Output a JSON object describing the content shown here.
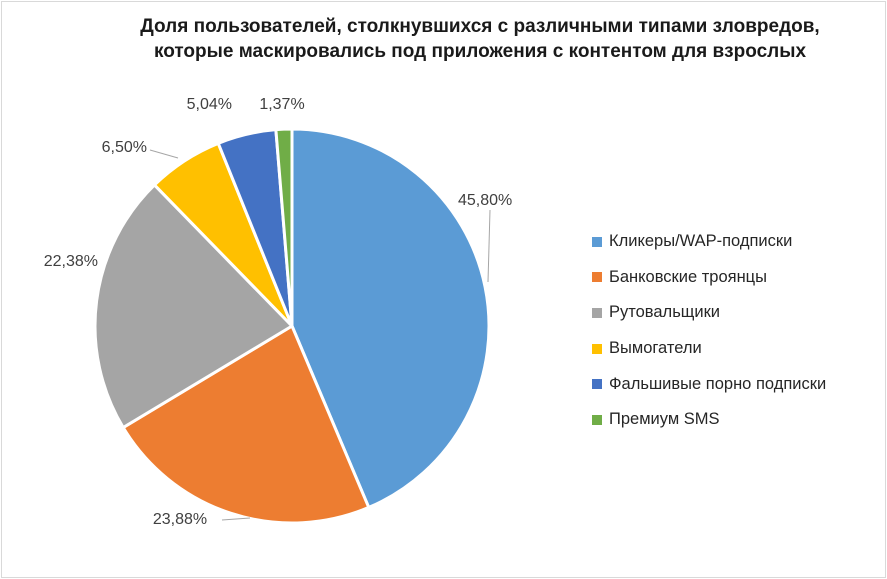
{
  "chart_data": {
    "type": "pie",
    "title_lines": [
      "Доля пользователей, столкнувшихся с различными типами зловредов,",
      "которые маскировались под приложения с контентом для взрослых"
    ],
    "legend_position": "right",
    "slices": [
      {
        "name": "Кликеры/WAP-подписки",
        "value": 45.8,
        "label": "45,80%",
        "color": "#5b9bd5"
      },
      {
        "name": "Банковские троянцы",
        "value": 23.88,
        "label": "23,88%",
        "color": "#ed7d31"
      },
      {
        "name": "Рутовальщики",
        "value": 22.38,
        "label": "22,38%",
        "color": "#a5a5a5"
      },
      {
        "name": "Вымогатели",
        "value": 6.5,
        "label": "6,50%",
        "color": "#ffc000"
      },
      {
        "name": "Фальшивые порно подписки",
        "value": 5.04,
        "label": "5,04%",
        "color": "#4472c4"
      },
      {
        "name": "Премиум SMS",
        "value": 1.37,
        "label": "1,37%",
        "color": "#70ad47"
      }
    ]
  }
}
